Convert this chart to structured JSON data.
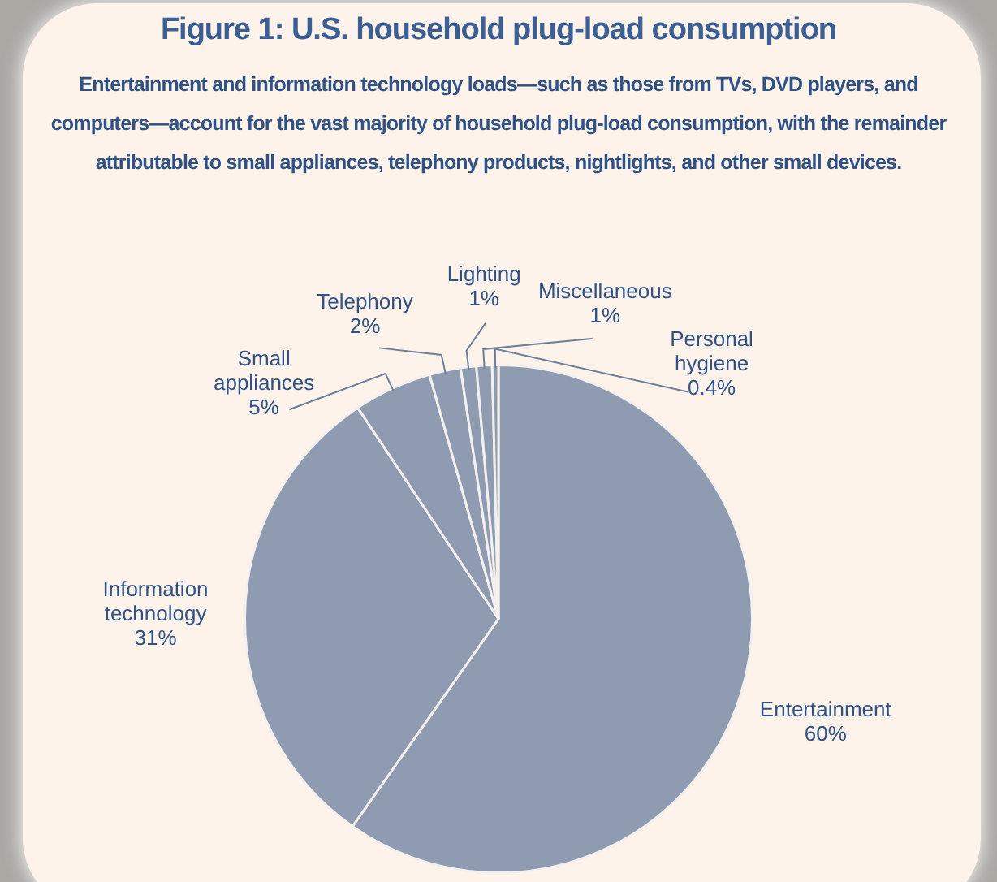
{
  "chart_data": {
    "type": "pie",
    "title": "Figure 1: U.S. household plug-load consumption",
    "subtitle": "Entertainment and information technology loads—such as those from TVs, DVD players, and computers—account for the vast majority of household plug-load consumption, with the remainder attributable to small appliances, telephony products, nightlights, and other small devices.",
    "categories": [
      "Entertainment",
      "Information technology",
      "Small appliances",
      "Telephony",
      "Lighting",
      "Miscellaneous",
      "Personal hygiene"
    ],
    "values": [
      60,
      31,
      5,
      2,
      1,
      1,
      0.4
    ],
    "value_labels": [
      "60%",
      "31%",
      "5%",
      "2%",
      "1%",
      "1%",
      "0.4%"
    ],
    "colors": [
      "#8e9bb1",
      "#8e9bb1",
      "#8e9bb1",
      "#8e9bb1",
      "#8e9bb1",
      "#8e9bb1",
      "#8e9bb1"
    ],
    "legend": false
  }
}
